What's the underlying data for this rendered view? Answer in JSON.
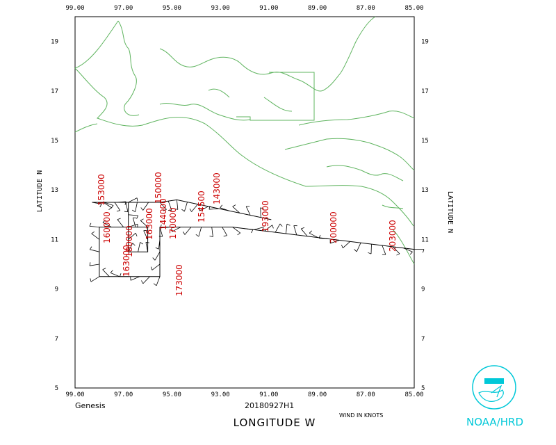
{
  "map": {
    "lon_ticks": [
      "99.00",
      "97.00",
      "95.00",
      "93.00",
      "91.00",
      "89.00",
      "87.00",
      "85.00"
    ],
    "lat_ticks": [
      "19",
      "17",
      "15",
      "13",
      "11",
      "9",
      "7",
      "5"
    ],
    "lat_ticks_values": [
      19,
      17,
      15,
      13,
      11,
      9,
      7,
      5
    ],
    "lon_range": [
      -99,
      -85
    ],
    "lat_range": [
      5,
      20
    ],
    "x_label": "LONGITUDE  W",
    "y_label_left": "LATITUDE  N",
    "y_label_right": "LATITUDE  N",
    "storm_name": "Genesis",
    "flight_id": "20180927H1",
    "wind_units": "WIND IN KNOTS",
    "agency": "NOAA/HRD",
    "colors": {
      "coast": "#5fb45f",
      "time_labels": "#cc0000",
      "logo": "#00c8d8"
    }
  },
  "time_labels": [
    "153000",
    "150000",
    "144000",
    "143000",
    "160000",
    "163000",
    "180000",
    "170000",
    "154500",
    "193000",
    "200000",
    "203000",
    "163000",
    "173000"
  ],
  "flight_track": [
    {
      "lon": -85.0,
      "lat": 10.6
    },
    {
      "lon": -92.5,
      "lat": 11.5
    },
    {
      "lon": -95.5,
      "lat": 11.5
    },
    {
      "lon": -95.5,
      "lat": 9.5
    },
    {
      "lon": -98.0,
      "lat": 9.5
    },
    {
      "lon": -98.0,
      "lat": 11.5
    },
    {
      "lon": -96.0,
      "lat": 11.5
    },
    {
      "lon": -96.0,
      "lat": 10.5
    },
    {
      "lon": -96.8,
      "lat": 10.5
    },
    {
      "lon": -96.8,
      "lat": 12.5
    },
    {
      "lon": -98.3,
      "lat": 12.5
    },
    {
      "lon": -95.5,
      "lat": 12.5
    },
    {
      "lon": -94.8,
      "lat": 12.6
    },
    {
      "lon": -90.9,
      "lat": 11.8
    }
  ]
}
